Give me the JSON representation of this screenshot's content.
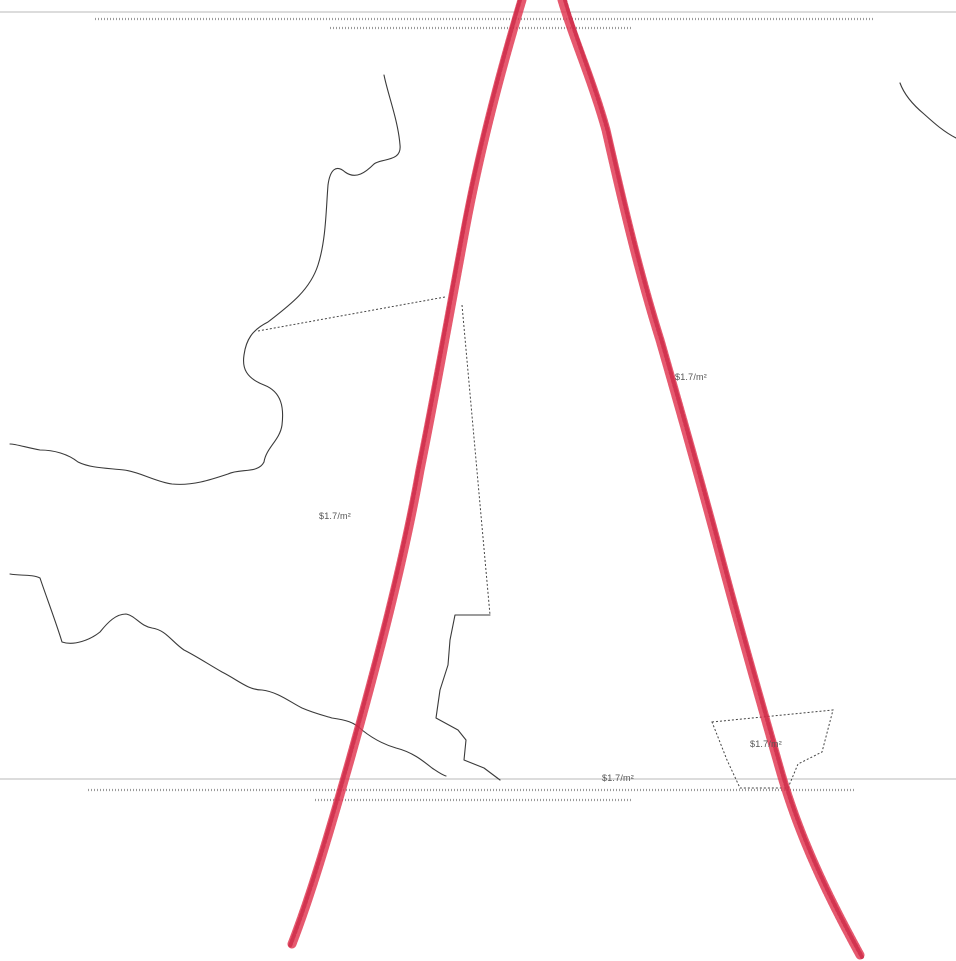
{
  "map": {
    "labels": {
      "price_right_parcel": "$1.7/m²",
      "price_left_parcel": "$1.7/m²",
      "price_bottom": "$1.7/m²",
      "price_small_parcel": "$1.7/m²"
    },
    "colors": {
      "pencil": "#e0344f",
      "boundary": "#3a3a3a",
      "fine_print": "#9a9a9a"
    }
  }
}
